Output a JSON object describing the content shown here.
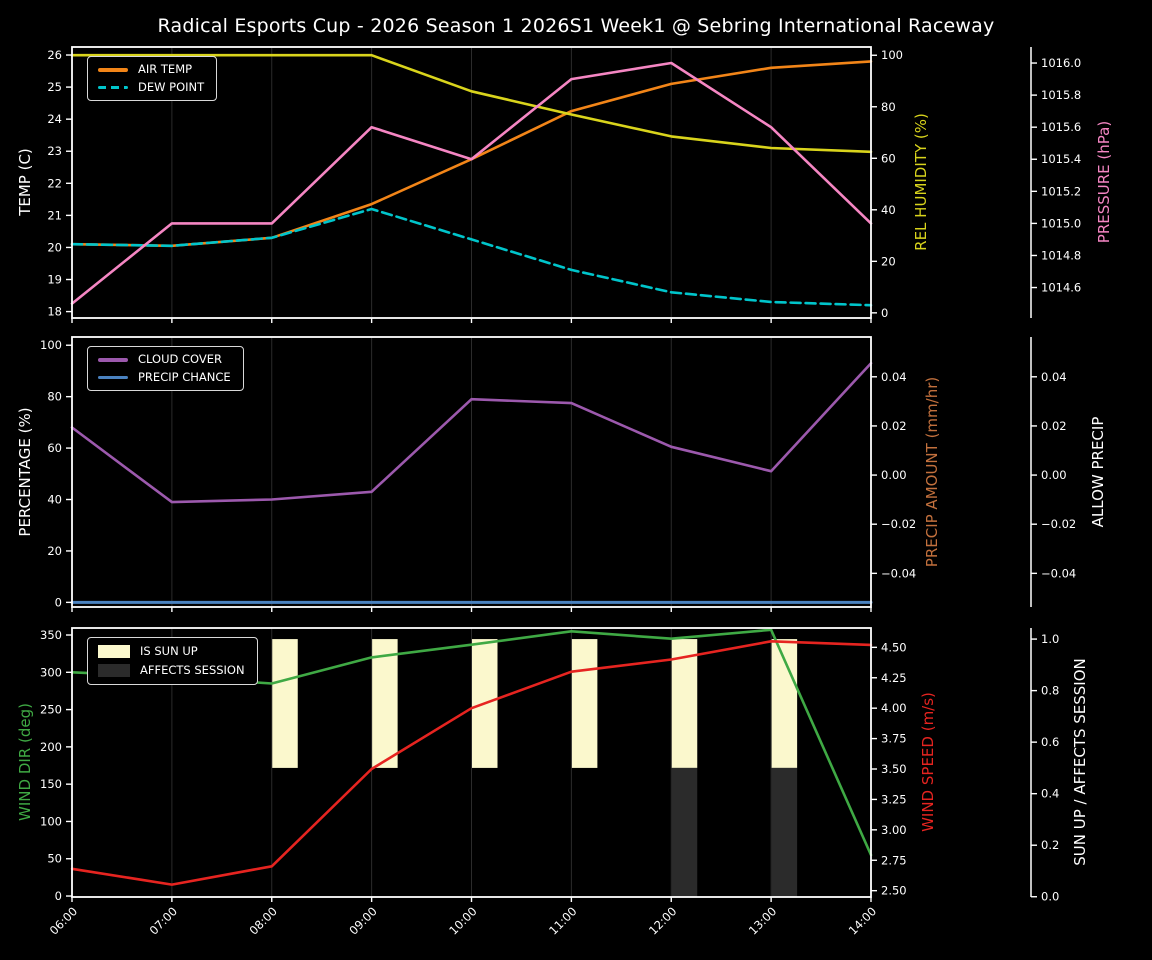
{
  "title": "Radical Esports Cup - 2026 Season 1 2026S1 Week1 @ Sebring International Raceway",
  "colors": {
    "background": "#000000",
    "spine": "#ffffff",
    "grid": "rgba(255,255,255,0.17)",
    "tick_text": "#ffffff"
  },
  "chart_data": [
    {
      "name": "temperature-panel",
      "type": "line",
      "x": [
        "06:00",
        "07:00",
        "08:00",
        "09:00",
        "10:00",
        "11:00",
        "12:00",
        "13:00",
        "14:00"
      ],
      "legend_position": "upper-left",
      "axes": {
        "left": {
          "label": "TEMP (C)",
          "color": "#ffffff",
          "min": 17.8,
          "max": 26.25,
          "ticks": [
            18,
            19,
            20,
            21,
            22,
            23,
            24,
            25,
            26
          ],
          "tick_labels": [
            "18",
            "19",
            "20",
            "21",
            "22",
            "23",
            "24",
            "25",
            "26"
          ]
        },
        "right1": {
          "label": "REL HUMIDITY (%)",
          "color": "#d9d41c",
          "min": -2.0,
          "max": 103.2,
          "ticks": [
            0,
            20,
            40,
            60,
            80,
            100
          ],
          "tick_labels": [
            "0",
            "20",
            "40",
            "60",
            "80",
            "100"
          ]
        },
        "right2": {
          "label": "PRESSURE (hPa)",
          "color": "#f586c3",
          "min": 1014.41,
          "max": 1016.1,
          "ticks": [
            1014.6,
            1014.8,
            1015.0,
            1015.2,
            1015.4,
            1015.6,
            1015.8,
            1016.0
          ],
          "tick_labels": [
            "1014.6",
            "1014.8",
            "1015.0",
            "1015.2",
            "1015.4",
            "1015.6",
            "1015.8",
            "1016.0"
          ]
        }
      },
      "series": [
        {
          "name": "AIR TEMP",
          "axis": "left",
          "color": "#f28518",
          "dashed": false,
          "in_legend": true,
          "values": [
            20.1,
            20.05,
            20.3,
            21.35,
            22.75,
            24.25,
            25.1,
            25.6,
            25.8
          ]
        },
        {
          "name": "DEW POINT",
          "axis": "left",
          "color": "#00c5cb",
          "dashed": true,
          "in_legend": true,
          "values": [
            20.1,
            20.05,
            20.3,
            21.2,
            20.25,
            19.3,
            18.6,
            18.3,
            18.2
          ]
        },
        {
          "name": "REL HUMIDITY",
          "axis": "right1",
          "color": "#d9d41c",
          "dashed": false,
          "in_legend": false,
          "values": [
            100,
            100,
            100,
            100,
            86,
            77,
            68.5,
            64,
            62.5
          ]
        },
        {
          "name": "PRESSURE",
          "axis": "right2",
          "color": "#f586c3",
          "dashed": false,
          "in_legend": false,
          "values": [
            1014.5,
            1015.0,
            1015.0,
            1015.6,
            1015.4,
            1015.9,
            1016.0,
            1015.6,
            1015.0
          ]
        }
      ]
    },
    {
      "name": "precipitation-panel",
      "type": "line",
      "x": [
        "06:00",
        "07:00",
        "08:00",
        "09:00",
        "10:00",
        "11:00",
        "12:00",
        "13:00",
        "14:00"
      ],
      "legend_position": "upper-left",
      "axes": {
        "left": {
          "label": "PERCENTAGE (%)",
          "color": "#ffffff",
          "min": -1.8,
          "max": 103.2,
          "ticks": [
            0,
            20,
            40,
            60,
            80,
            100
          ],
          "tick_labels": [
            "0",
            "20",
            "40",
            "60",
            "80",
            "100"
          ]
        },
        "right1": {
          "label": "PRECIP AMOUNT (mm/hr)",
          "color": "#c2703d",
          "min": -0.0537,
          "max": 0.0562,
          "ticks": [
            0.04,
            0.02,
            0,
            -0.02,
            -0.04
          ],
          "tick_labels": [
            "0.04",
            "0.02",
            "0.00",
            "−0.02",
            "−0.04"
          ]
        },
        "right2": {
          "label": "ALLOW PRECIP",
          "color": "#ffffff",
          "min": -0.0537,
          "max": 0.0562,
          "ticks": [
            0.04,
            0.02,
            0,
            -0.02,
            -0.04
          ],
          "tick_labels": [
            "0.04",
            "0.02",
            "0.00",
            "−0.02",
            "−0.04"
          ]
        }
      },
      "series": [
        {
          "name": "CLOUD COVER",
          "axis": "left",
          "color": "#9c59ad",
          "dashed": false,
          "in_legend": true,
          "values": [
            68,
            39,
            40,
            43,
            79,
            77.5,
            60.5,
            51,
            93
          ]
        },
        {
          "name": "PRECIP CHANCE",
          "axis": "left",
          "color": "#4a82c0",
          "dashed": false,
          "in_legend": true,
          "width": 3,
          "values": [
            0,
            0,
            0,
            0,
            0,
            0,
            0,
            0,
            0
          ]
        }
      ]
    },
    {
      "name": "wind-sun-panel",
      "type": "line",
      "x": [
        "06:00",
        "07:00",
        "08:00",
        "09:00",
        "10:00",
        "11:00",
        "12:00",
        "13:00",
        "14:00"
      ],
      "legend_position": "upper-left",
      "axes": {
        "left": {
          "label": "WIND DIR (deg)",
          "color": "#3fa944",
          "min": -1.3,
          "max": 359.4,
          "ticks": [
            0,
            50,
            100,
            150,
            200,
            250,
            300,
            350
          ],
          "tick_labels": [
            "0",
            "50",
            "100",
            "150",
            "200",
            "250",
            "300",
            "350"
          ]
        },
        "right1": {
          "label": "WIND SPEED (m/s)",
          "color": "#e62420",
          "min": 2.448,
          "max": 4.659,
          "ticks": [
            2.5,
            2.75,
            3.0,
            3.25,
            3.5,
            3.75,
            4.0,
            4.25,
            4.5
          ],
          "tick_labels": [
            "2.50",
            "2.75",
            "3.00",
            "3.25",
            "3.50",
            "3.75",
            "4.00",
            "4.25",
            "4.50"
          ]
        },
        "right2": {
          "label": "SUN UP / AFFECTS SESSION",
          "color": "#ffffff",
          "min": -0.001,
          "max": 1.043,
          "ticks": [
            0,
            0.2,
            0.4,
            0.6,
            0.8,
            1.0
          ],
          "tick_labels": [
            "0.0",
            "0.2",
            "0.4",
            "0.6",
            "0.8",
            "1.0"
          ]
        }
      },
      "bars": [
        {
          "name": "IS SUN UP",
          "axis": "right2",
          "color": "#fbf8cd",
          "base": 0.5,
          "top": 1.0,
          "in_legend": true,
          "flags": [
            0,
            0,
            1,
            1,
            1,
            1,
            1,
            1,
            0
          ]
        },
        {
          "name": "AFFECTS SESSION",
          "axis": "right2",
          "color": "#2b2b2b",
          "base": 0.0,
          "top": 0.5,
          "in_legend": true,
          "flags": [
            0,
            0,
            0,
            0,
            0,
            0,
            1,
            1,
            0
          ]
        }
      ],
      "series": [
        {
          "name": "WIND DIR",
          "axis": "left",
          "color": "#3fa944",
          "dashed": false,
          "in_legend": false,
          "values": [
            300,
            294,
            285,
            320,
            337,
            355,
            345,
            357,
            55
          ]
        },
        {
          "name": "WIND SPEED",
          "axis": "right1",
          "color": "#e62420",
          "dashed": false,
          "in_legend": false,
          "values": [
            2.68,
            2.55,
            2.7,
            3.5,
            4.0,
            4.3,
            4.4,
            4.55,
            4.52
          ]
        }
      ]
    }
  ]
}
